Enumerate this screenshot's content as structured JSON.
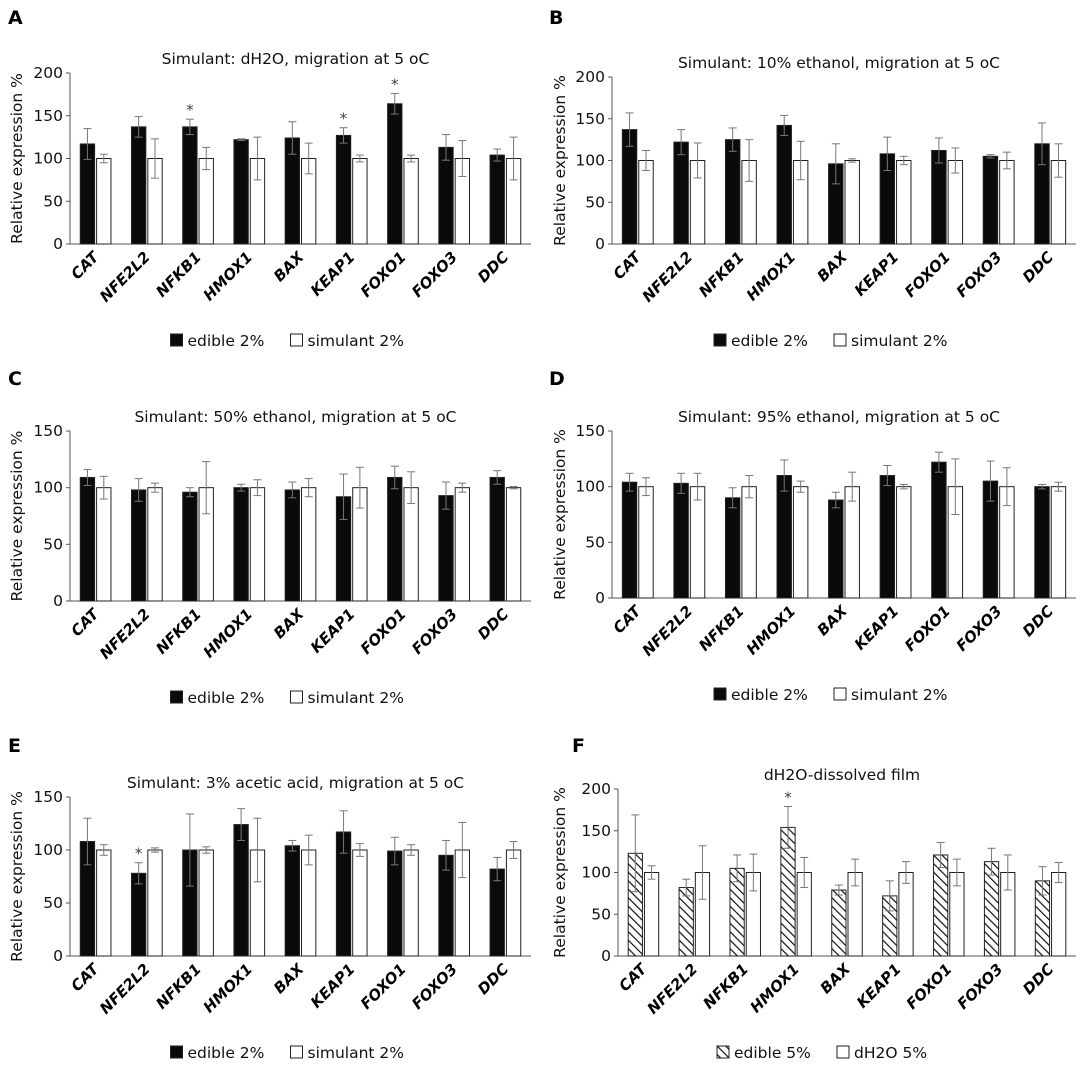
{
  "categories": [
    "CAT",
    "NFE2L2",
    "NFKB1",
    "HMOX1",
    "BAX",
    "KEAP1",
    "FOXO1",
    "FOXO3",
    "DDC"
  ],
  "colors": {
    "edible": "#0a0a0a",
    "control": "#ffffff",
    "axis": "#555555",
    "error": "#777777"
  },
  "chart_data": [
    {
      "panel": "A",
      "type": "bar",
      "title": "Simulant: dH2O, migration at 5 oC",
      "ylabel": "Relative expression %",
      "ylim": [
        0,
        200
      ],
      "yticks": [
        0,
        50,
        100,
        150,
        200
      ],
      "legend": [
        "edible 2%",
        "simulant 2%"
      ],
      "pattern": "solid",
      "series": [
        {
          "name": "edible 2%",
          "values": [
            117,
            137,
            137,
            122,
            124,
            127,
            164,
            113,
            104
          ],
          "errors": [
            18,
            12,
            9,
            1,
            19,
            9,
            12,
            15,
            7
          ],
          "significant": [
            false,
            false,
            true,
            false,
            false,
            true,
            true,
            false,
            false
          ]
        },
        {
          "name": "simulant 2%",
          "values": [
            100,
            100,
            100,
            100,
            100,
            100,
            100,
            100,
            100
          ],
          "errors": [
            5,
            23,
            13,
            25,
            18,
            4,
            4,
            21,
            25
          ]
        }
      ],
      "significance_mark": "*"
    },
    {
      "panel": "B",
      "type": "bar",
      "title": "Simulant: 10% ethanol, migration at 5 oC",
      "ylabel": "Relative expression %",
      "ylim": [
        0,
        200
      ],
      "yticks": [
        0,
        50,
        100,
        150,
        200
      ],
      "legend": [
        "edible 2%",
        "simulant 2%"
      ],
      "pattern": "solid",
      "series": [
        {
          "name": "edible 2%",
          "values": [
            137,
            122,
            125,
            142,
            96,
            108,
            112,
            105,
            120
          ],
          "errors": [
            20,
            15,
            14,
            12,
            24,
            20,
            15,
            2,
            25
          ],
          "significant": [
            false,
            false,
            false,
            false,
            false,
            false,
            false,
            false,
            false
          ]
        },
        {
          "name": "simulant 2%",
          "values": [
            100,
            100,
            100,
            100,
            100,
            100,
            100,
            100,
            100
          ],
          "errors": [
            12,
            21,
            25,
            23,
            2,
            5,
            15,
            10,
            20
          ]
        }
      ],
      "significance_mark": "*"
    },
    {
      "panel": "C",
      "type": "bar",
      "title": "Simulant: 50% ethanol, migration at 5 oC",
      "ylabel": "Relative expression %",
      "ylim": [
        0,
        150
      ],
      "yticks": [
        0,
        50,
        100,
        150
      ],
      "legend": [
        "edible 2%",
        "simulant 2%"
      ],
      "pattern": "solid",
      "series": [
        {
          "name": "edible 2%",
          "values": [
            109,
            98,
            96,
            100,
            98,
            92,
            109,
            93,
            109
          ],
          "errors": [
            7,
            10,
            4,
            3,
            7,
            20,
            10,
            12,
            6
          ],
          "significant": [
            false,
            false,
            false,
            false,
            false,
            false,
            false,
            false,
            false
          ]
        },
        {
          "name": "simulant 2%",
          "values": [
            100,
            100,
            100,
            100,
            100,
            100,
            100,
            100,
            100
          ],
          "errors": [
            10,
            4,
            23,
            7,
            8,
            18,
            14,
            4,
            1
          ]
        }
      ],
      "significance_mark": "*"
    },
    {
      "panel": "D",
      "type": "bar",
      "title": "Simulant: 95% ethanol, migration at 5 oC",
      "ylabel": "Relative expression %",
      "ylim": [
        0,
        150
      ],
      "yticks": [
        0,
        50,
        100,
        150
      ],
      "legend": [
        "edible 2%",
        "simulant 2%"
      ],
      "pattern": "solid",
      "series": [
        {
          "name": "edible 2%",
          "values": [
            104,
            103,
            90,
            110,
            88,
            110,
            122,
            105,
            100
          ],
          "errors": [
            8,
            9,
            9,
            14,
            7,
            9,
            9,
            18,
            2
          ],
          "significant": [
            false,
            false,
            false,
            false,
            false,
            false,
            false,
            false,
            false
          ]
        },
        {
          "name": "simulant 2%",
          "values": [
            100,
            100,
            100,
            100,
            100,
            100,
            100,
            100,
            100
          ],
          "errors": [
            8,
            12,
            10,
            5,
            13,
            2,
            25,
            17,
            4
          ]
        }
      ],
      "significance_mark": "*"
    },
    {
      "panel": "E",
      "type": "bar",
      "title": "Simulant: 3% acetic acid, migration at 5 oC",
      "ylabel": "Relative expression %",
      "ylim": [
        0,
        150
      ],
      "yticks": [
        0,
        50,
        100,
        150
      ],
      "legend": [
        "edible 2%",
        "simulant 2%"
      ],
      "pattern": "solid",
      "series": [
        {
          "name": "edible 2%",
          "values": [
            108,
            78,
            100,
            124,
            104,
            117,
            99,
            95,
            82
          ],
          "errors": [
            22,
            10,
            34,
            15,
            5,
            20,
            13,
            14,
            11
          ],
          "significant": [
            false,
            true,
            false,
            false,
            false,
            false,
            false,
            false,
            false
          ]
        },
        {
          "name": "simulant 2%",
          "values": [
            100,
            100,
            100,
            100,
            100,
            100,
            100,
            100,
            100
          ],
          "errors": [
            5,
            2,
            3,
            30,
            14,
            6,
            5,
            26,
            8
          ]
        }
      ],
      "significance_mark": "*"
    },
    {
      "panel": "F",
      "type": "bar",
      "title": "dH2O-dissolved film",
      "ylabel": "Relative expression %",
      "ylim": [
        0,
        200
      ],
      "yticks": [
        0,
        50,
        100,
        150,
        200
      ],
      "legend": [
        "edible 5%",
        "dH2O 5%"
      ],
      "pattern": "hatched",
      "series": [
        {
          "name": "edible 5%",
          "values": [
            123,
            82,
            105,
            154,
            79,
            72,
            121,
            113,
            90
          ],
          "errors": [
            46,
            10,
            16,
            25,
            6,
            18,
            15,
            16,
            17
          ],
          "significant": [
            false,
            false,
            false,
            true,
            false,
            false,
            false,
            false,
            false
          ]
        },
        {
          "name": "dH2O 5%",
          "values": [
            100,
            100,
            100,
            100,
            100,
            100,
            100,
            100,
            100
          ],
          "errors": [
            8,
            32,
            22,
            18,
            16,
            13,
            16,
            21,
            12
          ]
        }
      ],
      "significance_mark": "*"
    }
  ]
}
